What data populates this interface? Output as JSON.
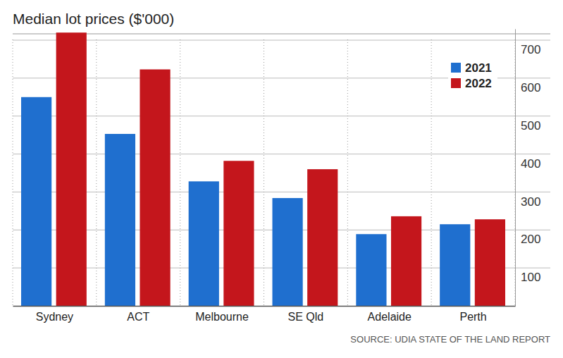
{
  "chart_data": {
    "type": "bar",
    "title": "Median lot prices ($'000)",
    "source": "SOURCE: UDIA STATE OF THE LAND REPORT",
    "categories": [
      "Sydney",
      "ACT",
      "Melbourne",
      "SE Qld",
      "Adelaide",
      "Perth"
    ],
    "series": [
      {
        "name": "2021",
        "color": "#1f6fcf",
        "values": [
          550,
          453,
          328,
          284,
          189,
          215
        ]
      },
      {
        "name": "2022",
        "color": "#c4161c",
        "values": [
          720,
          623,
          382,
          360,
          236,
          228
        ]
      }
    ],
    "ylim": [
      0,
      730
    ],
    "yticks": [
      100,
      200,
      300,
      400,
      500,
      600,
      700
    ],
    "grid": true,
    "legend": "upper right"
  }
}
